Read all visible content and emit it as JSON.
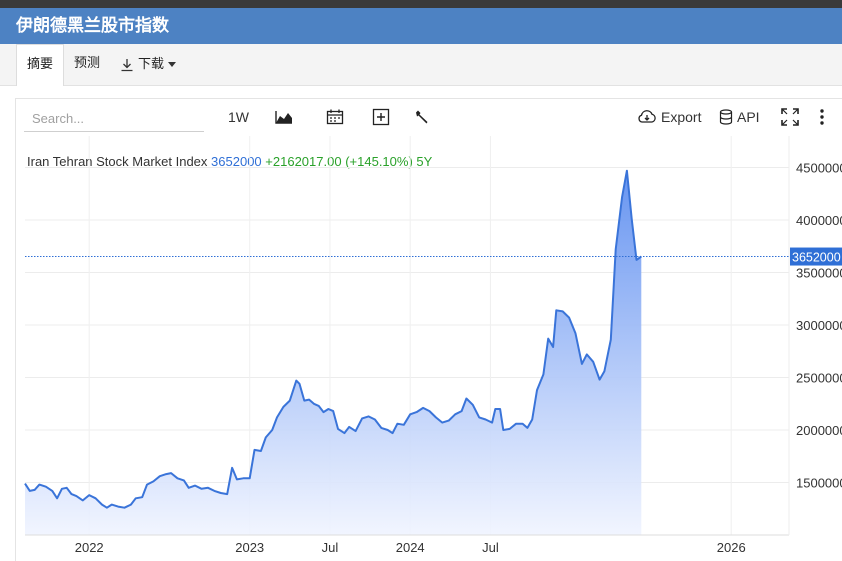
{
  "header": {
    "title": "伊朗德黑兰股市指数"
  },
  "tabs": [
    {
      "label": "摘要"
    },
    {
      "label": "预测"
    },
    {
      "label": "下载"
    }
  ],
  "toolbar": {
    "search_placeholder": "Search...",
    "range_label": "1W",
    "export_label": "Export",
    "api_label": "API"
  },
  "legend": {
    "name": "Iran Tehran Stock Market Index",
    "value": "3652000",
    "change": "+2162017.00",
    "change_pct": "(+145.10%)",
    "period": "5Y"
  },
  "colors": {
    "header": "#4d82c3",
    "line": "#3a74d9",
    "fill_top": "#5f8ff0",
    "fill_bottom": "#f0f4ff",
    "badge": "#2f6fd6",
    "change": "#2aa12a"
  },
  "chart_data": {
    "type": "area",
    "last_value_label": "3652000",
    "ylim": [
      1000000,
      4800000
    ],
    "y_ticks": [
      1500000,
      2000000,
      2500000,
      3000000,
      3500000,
      4000000,
      4500000
    ],
    "x_ticks": [
      {
        "label": "2022",
        "x": 2022.0
      },
      {
        "label": "2023",
        "x": 2023.0
      },
      {
        "label": "Jul",
        "x": 2023.5
      },
      {
        "label": "2024",
        "x": 2024.0
      },
      {
        "label": "Jul",
        "x": 2024.5
      },
      {
        "label": "2026",
        "x": 2026.0
      }
    ],
    "xlim": [
      2021.6,
      2026.36
    ],
    "points": [
      [
        2021.6,
        1490000
      ],
      [
        2021.63,
        1420000
      ],
      [
        2021.66,
        1430000
      ],
      [
        2021.69,
        1480000
      ],
      [
        2021.73,
        1460000
      ],
      [
        2021.77,
        1420000
      ],
      [
        2021.8,
        1350000
      ],
      [
        2021.83,
        1440000
      ],
      [
        2021.86,
        1450000
      ],
      [
        2021.89,
        1390000
      ],
      [
        2021.92,
        1370000
      ],
      [
        2021.96,
        1330000
      ],
      [
        2022.0,
        1380000
      ],
      [
        2022.04,
        1350000
      ],
      [
        2022.08,
        1290000
      ],
      [
        2022.11,
        1260000
      ],
      [
        2022.14,
        1290000
      ],
      [
        2022.18,
        1270000
      ],
      [
        2022.22,
        1260000
      ],
      [
        2022.26,
        1290000
      ],
      [
        2022.29,
        1350000
      ],
      [
        2022.33,
        1360000
      ],
      [
        2022.36,
        1480000
      ],
      [
        2022.4,
        1510000
      ],
      [
        2022.44,
        1560000
      ],
      [
        2022.48,
        1580000
      ],
      [
        2022.51,
        1590000
      ],
      [
        2022.55,
        1540000
      ],
      [
        2022.59,
        1520000
      ],
      [
        2022.62,
        1450000
      ],
      [
        2022.66,
        1470000
      ],
      [
        2022.7,
        1440000
      ],
      [
        2022.74,
        1450000
      ],
      [
        2022.78,
        1420000
      ],
      [
        2022.82,
        1400000
      ],
      [
        2022.86,
        1390000
      ],
      [
        2022.89,
        1640000
      ],
      [
        2022.92,
        1530000
      ],
      [
        2022.96,
        1540000
      ],
      [
        2023.0,
        1540000
      ],
      [
        2023.03,
        1810000
      ],
      [
        2023.07,
        1800000
      ],
      [
        2023.1,
        1930000
      ],
      [
        2023.14,
        2000000
      ],
      [
        2023.17,
        2120000
      ],
      [
        2023.21,
        2220000
      ],
      [
        2023.25,
        2280000
      ],
      [
        2023.29,
        2470000
      ],
      [
        2023.31,
        2440000
      ],
      [
        2023.34,
        2280000
      ],
      [
        2023.37,
        2290000
      ],
      [
        2023.4,
        2250000
      ],
      [
        2023.43,
        2230000
      ],
      [
        2023.46,
        2170000
      ],
      [
        2023.49,
        2200000
      ],
      [
        2023.52,
        2180000
      ],
      [
        2023.55,
        2010000
      ],
      [
        2023.59,
        1970000
      ],
      [
        2023.62,
        2030000
      ],
      [
        2023.66,
        1990000
      ],
      [
        2023.7,
        2110000
      ],
      [
        2023.74,
        2130000
      ],
      [
        2023.78,
        2100000
      ],
      [
        2023.82,
        2020000
      ],
      [
        2023.86,
        2000000
      ],
      [
        2023.89,
        1970000
      ],
      [
        2023.92,
        2060000
      ],
      [
        2023.96,
        2050000
      ],
      [
        2024.0,
        2150000
      ],
      [
        2024.04,
        2170000
      ],
      [
        2024.08,
        2210000
      ],
      [
        2024.12,
        2180000
      ],
      [
        2024.16,
        2120000
      ],
      [
        2024.2,
        2070000
      ],
      [
        2024.24,
        2090000
      ],
      [
        2024.28,
        2150000
      ],
      [
        2024.32,
        2180000
      ],
      [
        2024.35,
        2300000
      ],
      [
        2024.39,
        2240000
      ],
      [
        2024.43,
        2120000
      ],
      [
        2024.47,
        2100000
      ],
      [
        2024.51,
        2070000
      ],
      [
        2024.53,
        2200000
      ],
      [
        2024.56,
        2200000
      ],
      [
        2024.58,
        2000000
      ],
      [
        2024.62,
        2010000
      ],
      [
        2024.66,
        2060000
      ],
      [
        2024.7,
        2060000
      ],
      [
        2024.73,
        2020000
      ],
      [
        2024.76,
        2100000
      ],
      [
        2024.79,
        2380000
      ],
      [
        2024.83,
        2530000
      ],
      [
        2024.86,
        2870000
      ],
      [
        2024.89,
        2790000
      ],
      [
        2024.91,
        3140000
      ],
      [
        2024.95,
        3130000
      ],
      [
        2024.99,
        3070000
      ],
      [
        2025.03,
        2920000
      ],
      [
        2025.07,
        2630000
      ],
      [
        2025.1,
        2720000
      ],
      [
        2025.14,
        2650000
      ],
      [
        2025.18,
        2480000
      ],
      [
        2025.21,
        2560000
      ],
      [
        2025.25,
        2860000
      ],
      [
        2025.28,
        3720000
      ],
      [
        2025.32,
        4220000
      ],
      [
        2025.35,
        4470000
      ],
      [
        2025.38,
        4010000
      ],
      [
        2025.41,
        3620000
      ],
      [
        2025.44,
        3652000
      ]
    ]
  }
}
